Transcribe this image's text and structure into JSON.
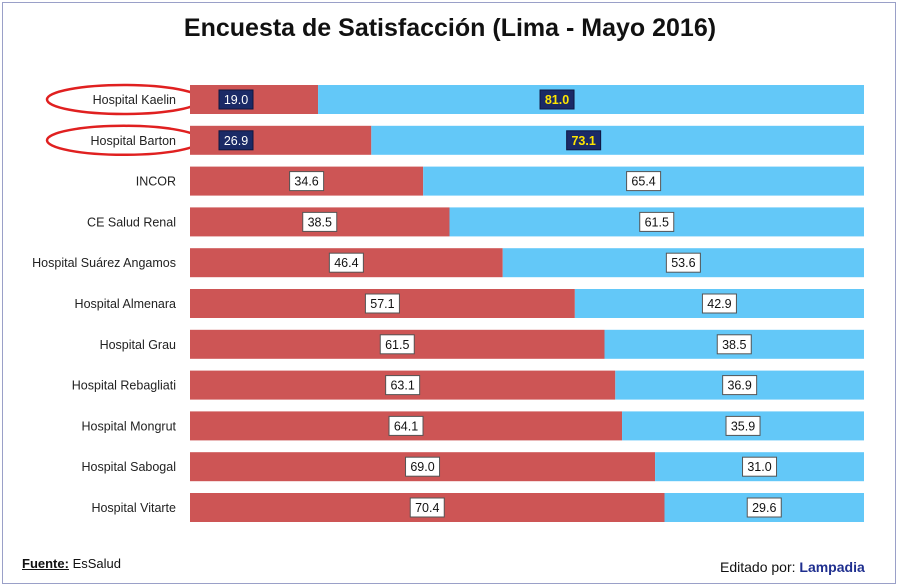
{
  "chart_data": {
    "type": "bar",
    "orientation": "horizontal",
    "stacked": true,
    "title": "Encuesta de Satisfacción (Lima - Mayo 2016)",
    "categories": [
      "Hospital Kaelin",
      "Hospital Barton",
      "INCOR",
      "CE Salud Renal",
      "Hospital Suárez Angamos",
      "Hospital Almenara",
      "Hospital Grau",
      "Hospital Rebagliati",
      "Hospital Mongrut",
      "Hospital Sabogal",
      "Hospital Vitarte"
    ],
    "series": [
      {
        "values": [
          19.0,
          26.9,
          34.6,
          38.5,
          46.4,
          57.1,
          61.5,
          63.1,
          64.1,
          69.0,
          70.4
        ],
        "color": "#cd5555"
      },
      {
        "values": [
          81.0,
          73.1,
          65.4,
          61.5,
          53.6,
          42.9,
          38.5,
          36.9,
          35.9,
          31.0,
          29.6
        ],
        "color": "#63c8f8"
      }
    ],
    "value_labels": [
      [
        "19.0",
        "26.9",
        "34.6",
        "38.5",
        "46.4",
        "57.1",
        "61.5",
        "63.1",
        "64.1",
        "69.0",
        "70.4"
      ],
      [
        "81.0",
        "73.1",
        "65.4",
        "61.5",
        "53.6",
        "42.9",
        "38.5",
        "36.9",
        "35.9",
        "31.0",
        "29.6"
      ]
    ],
    "xlim": [
      0,
      100
    ],
    "grid": false,
    "highlighted_categories": [
      "Hospital Kaelin",
      "Hospital Barton"
    ],
    "highlight_color": "#e02020",
    "highlight_label_fill": "#1b2a66",
    "highlight_label_text": "#ffffff",
    "highlight_label_text_alt": "#ffe600"
  },
  "footer": {
    "source_label": "Fuente:",
    "source_value": "EsSalud",
    "edited_label": "Editado por:",
    "edited_value": "Lampadia"
  }
}
